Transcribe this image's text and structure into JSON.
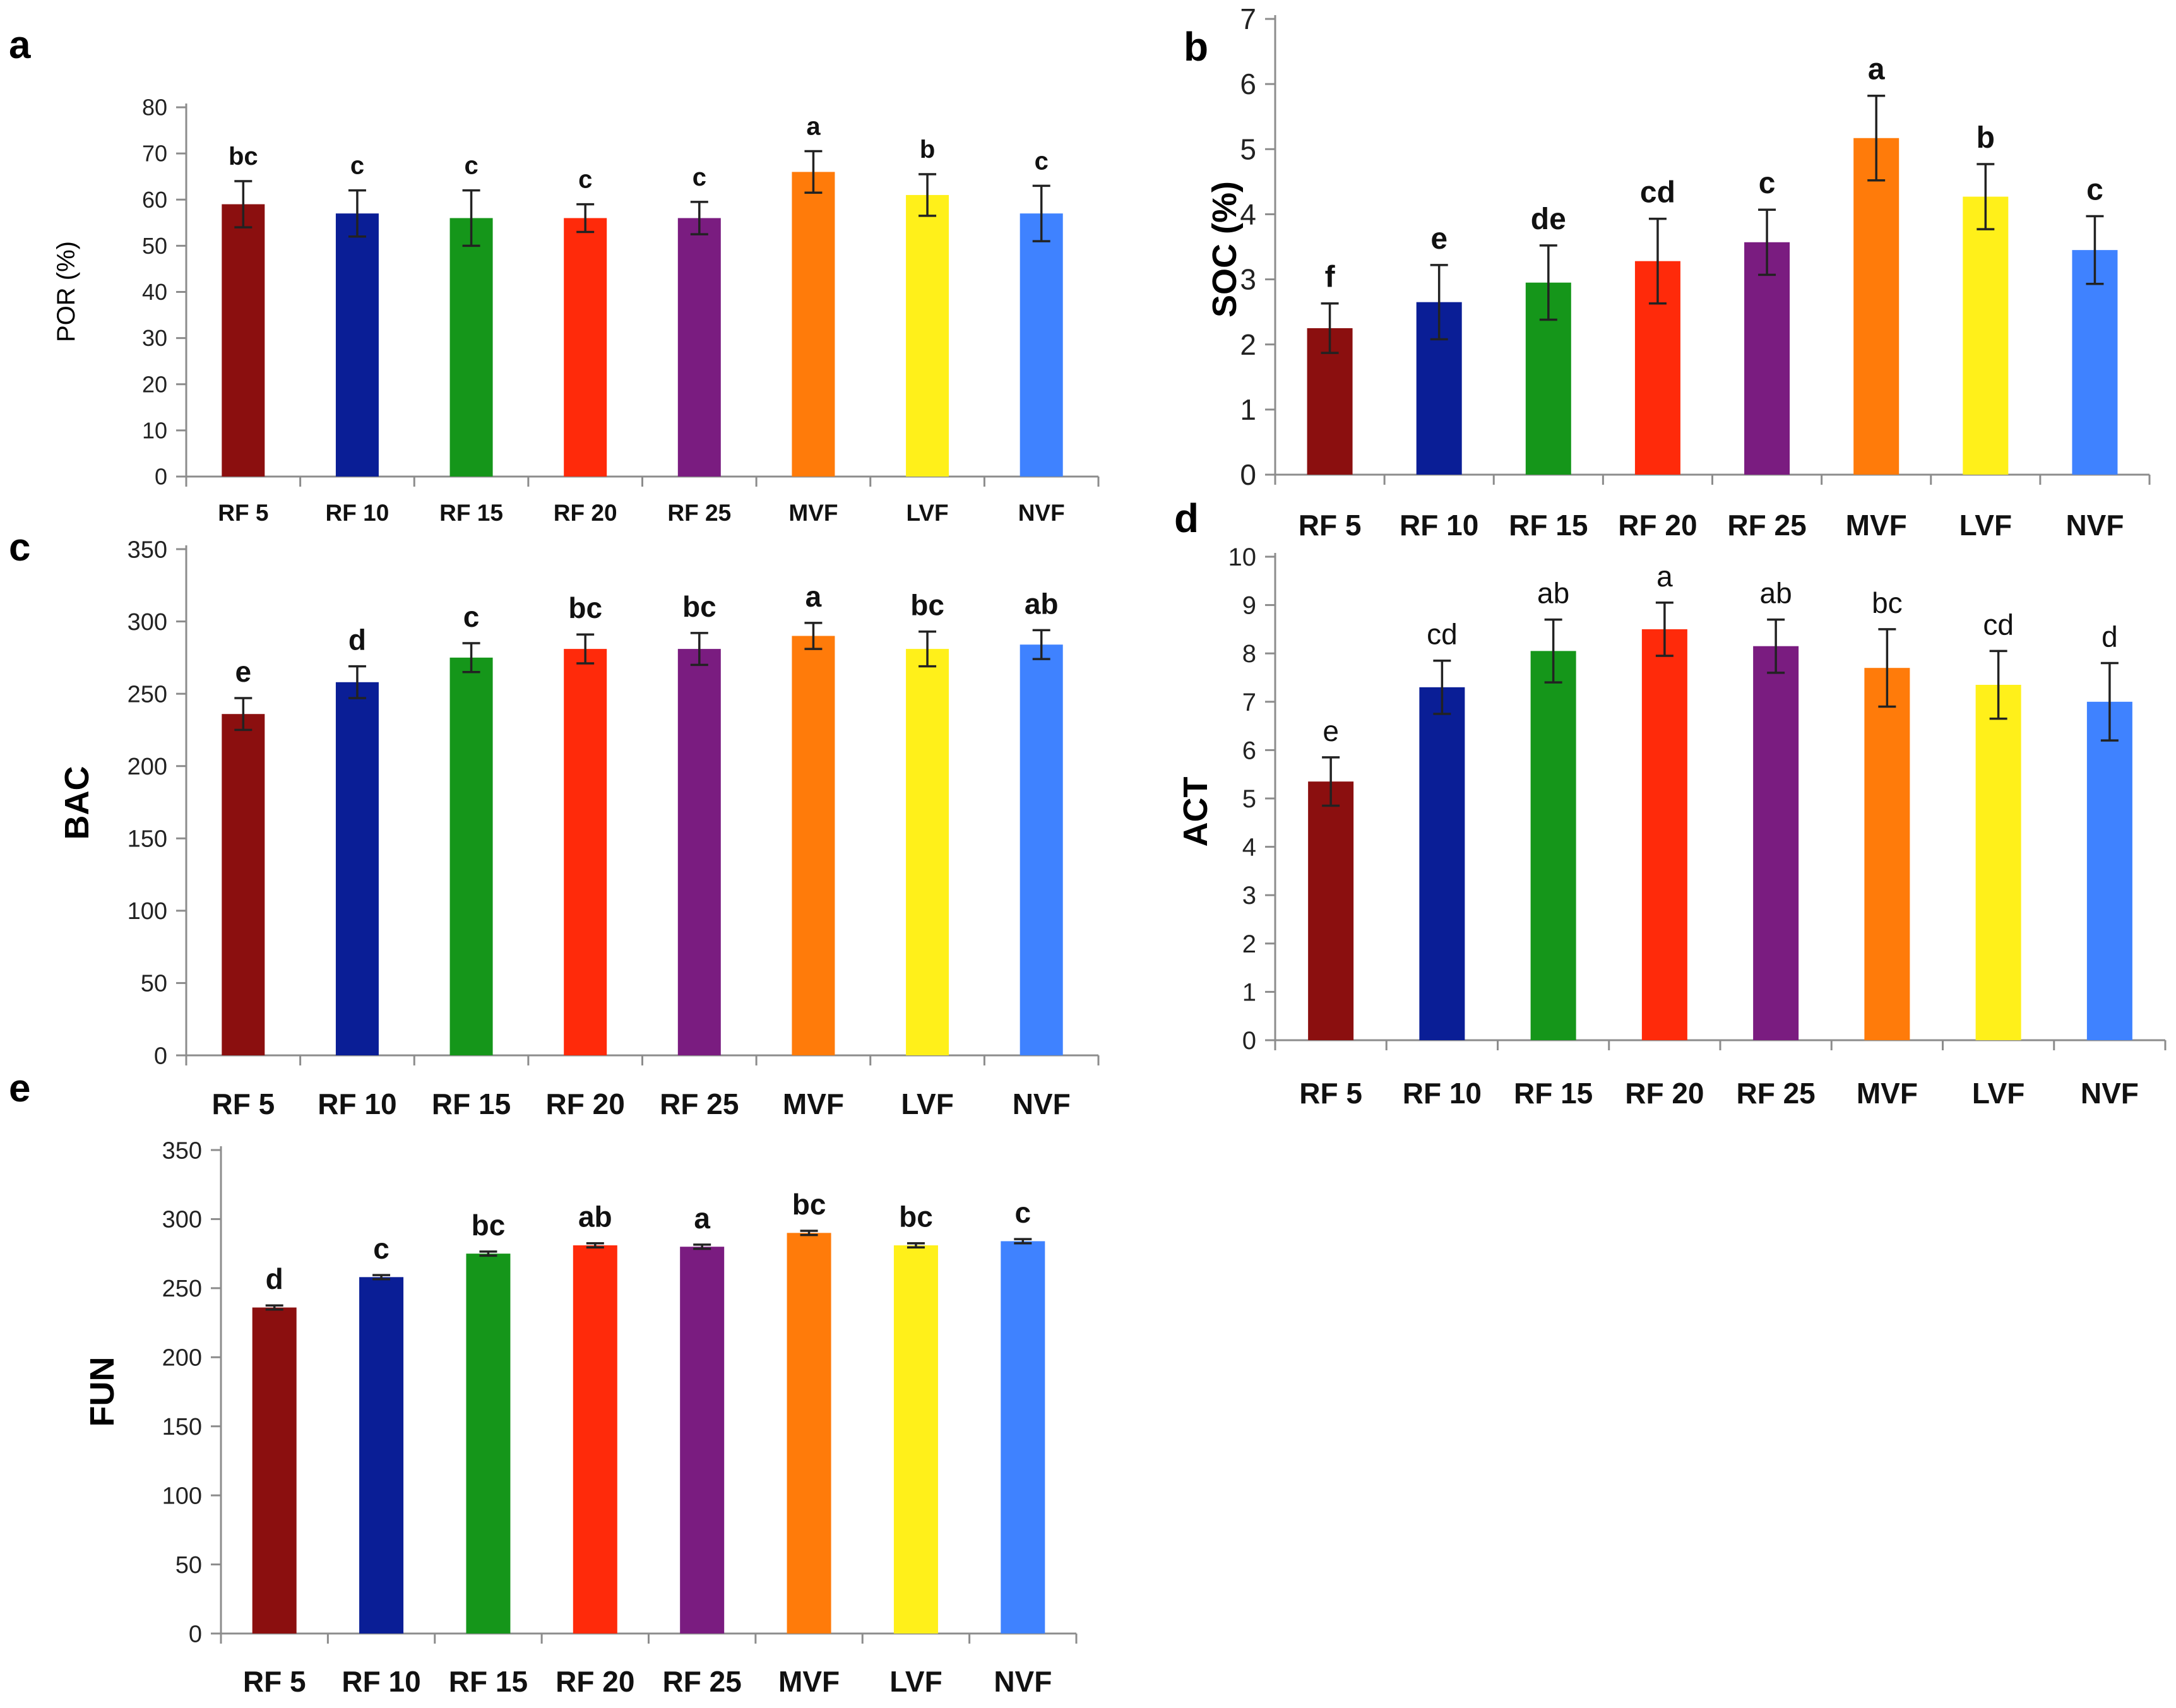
{
  "colors": [
    "#8B0F0F",
    "#0A1E96",
    "#15961A",
    "#FF2A0A",
    "#7A1C80",
    "#FF7B0A",
    "#FFF01A",
    "#3F82FF"
  ],
  "chart_data": [
    {
      "panel": "a",
      "type": "bar",
      "ylabel": "POR (%)",
      "ylim": [
        0,
        80
      ],
      "ticks": [
        0,
        10,
        20,
        30,
        40,
        50,
        60,
        70,
        80
      ],
      "categories": [
        "RF 5",
        "RF 10",
        "RF 15",
        "RF 20",
        "RF 25",
        "MVF",
        "LVF",
        "NVF"
      ],
      "values": [
        59,
        57,
        56,
        56,
        56,
        66,
        61,
        57
      ],
      "errors": [
        5,
        5,
        6,
        3,
        3.5,
        4.5,
        4.5,
        6
      ],
      "letters": [
        "bc",
        "c",
        "c",
        "c",
        "c",
        "a",
        "b",
        "c"
      ]
    },
    {
      "panel": "b",
      "type": "bar",
      "ylabel": "SOC (%)",
      "ylim": [
        0,
        7
      ],
      "ticks": [
        0,
        1,
        2,
        3,
        4,
        5,
        6,
        7
      ],
      "categories": [
        "RF 5",
        "RF 10",
        "RF 15",
        "RF 20",
        "RF 25",
        "MVF",
        "LVF",
        "NVF"
      ],
      "values": [
        2.25,
        2.65,
        2.95,
        3.28,
        3.57,
        5.17,
        4.27,
        3.45
      ],
      "errors": [
        0.38,
        0.57,
        0.57,
        0.65,
        0.5,
        0.65,
        0.5,
        0.52
      ],
      "letters": [
        "f",
        "e",
        "de",
        "cd",
        "c",
        "a",
        "b",
        "c"
      ]
    },
    {
      "panel": "c",
      "type": "bar",
      "ylabel": "BAC",
      "ylim": [
        0,
        350
      ],
      "ticks": [
        0,
        50,
        100,
        150,
        200,
        250,
        300,
        350
      ],
      "categories": [
        "RF 5",
        "RF 10",
        "RF 15",
        "RF 20",
        "RF 25",
        "MVF",
        "LVF",
        "NVF"
      ],
      "values": [
        236,
        258,
        275,
        281,
        281,
        290,
        281,
        284
      ],
      "errors": [
        11,
        11,
        10,
        10,
        11,
        9,
        12,
        10
      ],
      "letters": [
        "e",
        "d",
        "c",
        "bc",
        "bc",
        "a",
        "bc",
        "ab"
      ]
    },
    {
      "panel": "d",
      "type": "bar",
      "ylabel": "ACT",
      "ylim": [
        0,
        10
      ],
      "ticks": [
        0,
        1,
        2,
        3,
        4,
        5,
        6,
        7,
        8,
        9,
        10
      ],
      "categories": [
        "RF 5",
        "RF 10",
        "RF 15",
        "RF 20",
        "RF 25",
        "MVF",
        "LVF",
        "NVF"
      ],
      "values": [
        5.35,
        7.3,
        8.05,
        8.5,
        8.15,
        7.7,
        7.35,
        7.0
      ],
      "errors": [
        0.5,
        0.55,
        0.65,
        0.55,
        0.55,
        0.8,
        0.7,
        0.8
      ],
      "letters": [
        "e",
        "cd",
        "ab",
        "a",
        "ab",
        "bc",
        "cd",
        "d"
      ]
    },
    {
      "panel": "e",
      "type": "bar",
      "ylabel": "FUN",
      "ylim": [
        0,
        350
      ],
      "ticks": [
        0,
        50,
        100,
        150,
        200,
        250,
        300,
        350
      ],
      "categories": [
        "RF 5",
        "RF 10",
        "RF 15",
        "RF 20",
        "RF 25",
        "MVF",
        "LVF",
        "NVF"
      ],
      "values": [
        236,
        258,
        275,
        281,
        280,
        290,
        281,
        284
      ],
      "errors": [
        1.5,
        1.5,
        1.5,
        1.5,
        1.5,
        1.5,
        1.5,
        1.5
      ],
      "letters": [
        "d",
        "c",
        "bc",
        "ab",
        "a",
        "bc",
        "bc",
        "c"
      ]
    }
  ]
}
